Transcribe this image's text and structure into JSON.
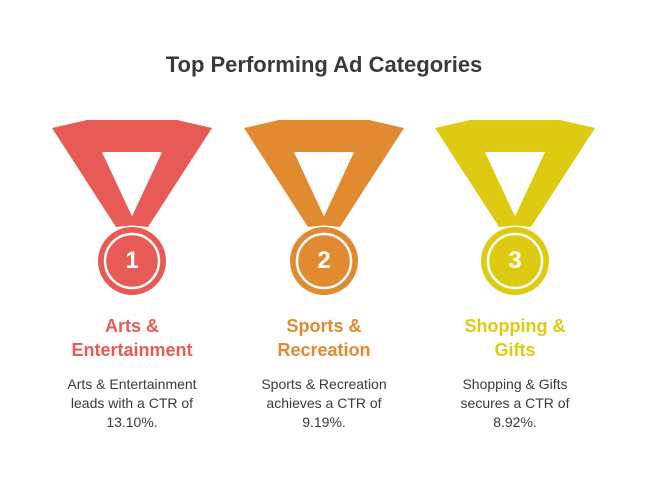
{
  "title": "Top Performing Ad Categories",
  "medals": [
    {
      "rank": "1",
      "name_line1": "Arts &",
      "name_line2": "Entertainment",
      "desc_line1": "Arts & Entertainment",
      "desc_line2": "leads with a CTR of",
      "desc_line3": "13.10%.",
      "color": "#e85a55"
    },
    {
      "rank": "2",
      "name_line1": "Sports &",
      "name_line2": "Recreation",
      "desc_line1": "Sports & Recreation",
      "desc_line2": "achieves a CTR of",
      "desc_line3": "9.19%.",
      "color": "#e18a30"
    },
    {
      "rank": "3",
      "name_line1": "Shopping &",
      "name_line2": "Gifts",
      "desc_line1": "Shopping & Gifts",
      "desc_line2": "secures a CTR of",
      "desc_line3": "8.92%.",
      "color": "#dfca12"
    }
  ]
}
